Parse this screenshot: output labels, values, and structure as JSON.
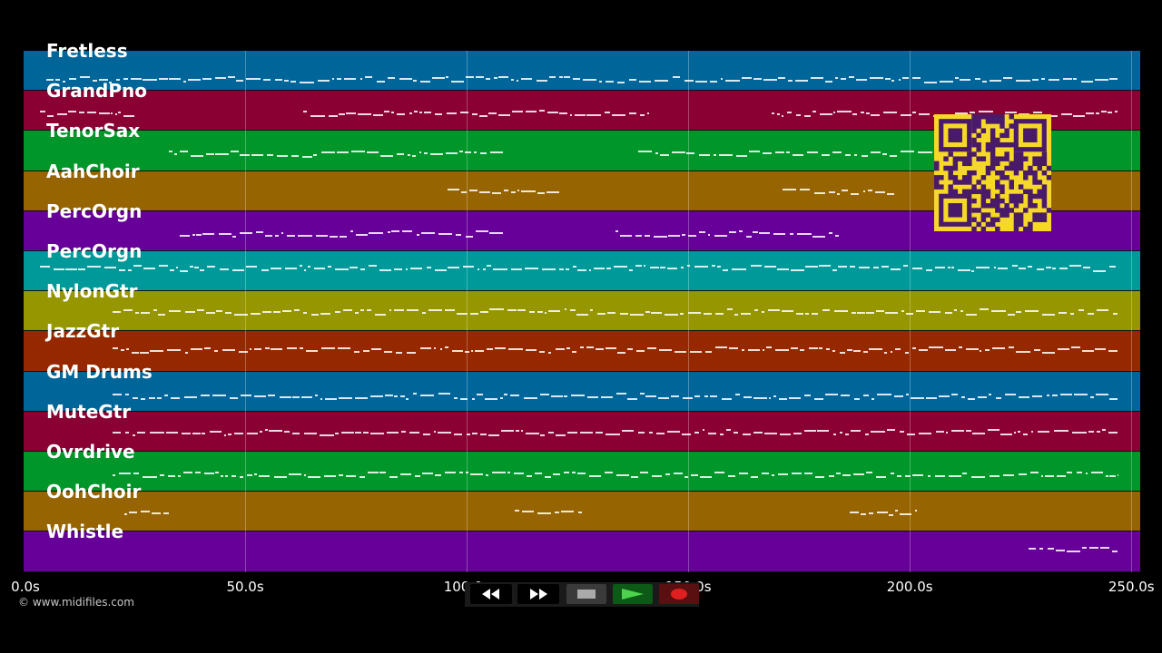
{
  "tracks": [
    {
      "name": "Fretless",
      "color": "#006699",
      "dense": [
        [
          0.02,
          0.98
        ]
      ],
      "y": 0.7
    },
    {
      "name": "GrandPno",
      "color": "#8a0033",
      "dense": [
        [
          0.015,
          0.1
        ],
        [
          0.25,
          0.56
        ],
        [
          0.67,
          0.98
        ]
      ],
      "y": 0.55
    },
    {
      "name": "TenorSax",
      "color": "#00962a",
      "dense": [
        [
          0.13,
          0.43
        ],
        [
          0.55,
          0.82
        ]
      ],
      "y": 0.55
    },
    {
      "name": "AahChoir",
      "color": "#966400",
      "dense": [
        [
          0.38,
          0.48
        ],
        [
          0.68,
          0.78
        ]
      ],
      "y": 0.5
    },
    {
      "name": "PercOrgn",
      "color": "#660099",
      "dense": [
        [
          0.14,
          0.43
        ],
        [
          0.53,
          0.73
        ]
      ],
      "y": 0.55
    },
    {
      "name": "PercOrgn",
      "color": "#009999",
      "dense": [
        [
          0.015,
          0.98
        ]
      ],
      "y": 0.4
    },
    {
      "name": "NylonGtr",
      "color": "#969600",
      "dense": [
        [
          0.08,
          0.98
        ]
      ],
      "y": 0.5
    },
    {
      "name": "JazzGtr",
      "color": "#962800",
      "dense": [
        [
          0.08,
          0.98
        ]
      ],
      "y": 0.45
    },
    {
      "name": "GM Drums",
      "color": "#006699",
      "dense": [
        [
          0.08,
          0.98
        ]
      ],
      "y": 0.6
    },
    {
      "name": "MuteGtr",
      "color": "#8a0033",
      "dense": [
        [
          0.08,
          0.98
        ]
      ],
      "y": 0.5
    },
    {
      "name": "Ovrdrive",
      "color": "#00962a",
      "dense": [
        [
          0.08,
          0.98
        ]
      ],
      "y": 0.55
    },
    {
      "name": "OohChoir",
      "color": "#966400",
      "dense": [
        [
          0.09,
          0.13
        ],
        [
          0.44,
          0.5
        ],
        [
          0.74,
          0.8
        ]
      ],
      "y": 0.5
    },
    {
      "name": "Whistle",
      "color": "#660099",
      "dense": [
        [
          0.9,
          0.98
        ]
      ],
      "y": 0.4
    }
  ],
  "axis": {
    "ticks": [
      "0.0s",
      "50.0s",
      "100.0s",
      "150.0s",
      "200.0s",
      "250.0s"
    ],
    "tick_values": [
      0,
      50,
      100,
      150,
      200,
      250
    ],
    "range": [
      0,
      252
    ]
  },
  "copyright": "© www.midifiles.com",
  "transport": {
    "rewind_color": "#000000",
    "forward_color": "#000000",
    "stop_color": "#3a3a3a",
    "play_color": "#0c5a16",
    "record_color": "#5a1010"
  },
  "qr_colors": {
    "bg": "#f5d82a",
    "fg": "#4a1a6a"
  }
}
